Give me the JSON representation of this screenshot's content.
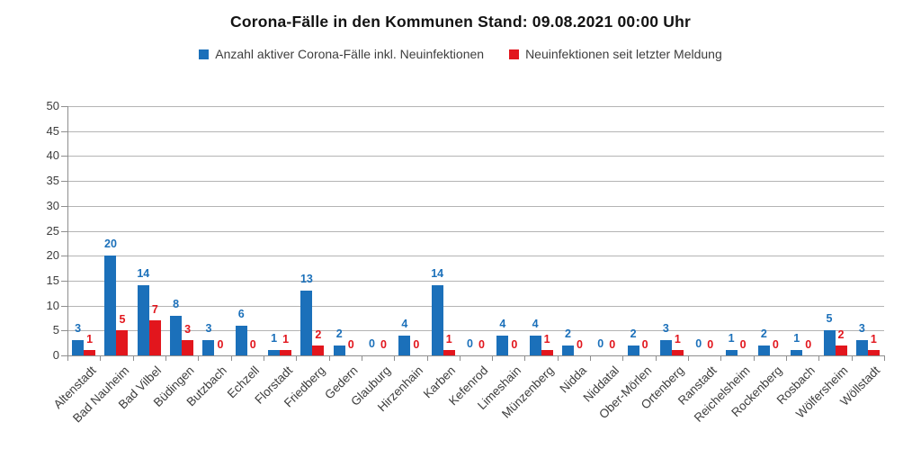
{
  "title": "Corona-Fälle in den Kommunen Stand: 09.08.2021 00:00 Uhr",
  "colors": {
    "active_cases_blue": "#1b70ba",
    "new_infections_red": "#e2161d",
    "grid": "#b4b4b4",
    "axis": "#8e8e8e",
    "text": "#3d3d3d",
    "title_text": "#131313"
  },
  "chart_data": {
    "type": "bar",
    "title": "Corona-Fälle in den Kommunen Stand: 09.08.2021 00:00 Uhr",
    "categories": [
      "Altenstadt",
      "Bad Nauheim",
      "Bad Vilbel",
      "Büdingen",
      "Butzbach",
      "Echzell",
      "Florstadt",
      "Friedberg",
      "Gedern",
      "Glauburg",
      "Hirzenhain",
      "Karben",
      "Kefenrod",
      "Limeshain",
      "Münzenberg",
      "Nidda",
      "Niddatal",
      "Ober-Mörlen",
      "Ortenberg",
      "Ranstadt",
      "Reichelsheim",
      "Rockenberg",
      "Rosbach",
      "Wölfersheim",
      "Wöllstadt"
    ],
    "series": [
      {
        "name": "Anzahl aktiver Corona-Fälle inkl. Neuinfektionen",
        "color": "#1b70ba",
        "values": [
          3,
          20,
          14,
          8,
          3,
          6,
          1,
          13,
          2,
          0,
          4,
          14,
          0,
          4,
          4,
          2,
          0,
          2,
          3,
          0,
          1,
          2,
          1,
          5,
          3
        ]
      },
      {
        "name": "Neuinfektionen seit letzter Meldung",
        "color": "#e2161d",
        "values": [
          1,
          5,
          7,
          3,
          0,
          0,
          1,
          2,
          0,
          0,
          0,
          1,
          0,
          0,
          1,
          0,
          0,
          0,
          1,
          0,
          0,
          0,
          0,
          2,
          1
        ]
      }
    ],
    "xlabel": "",
    "ylabel": "",
    "ylim": [
      0,
      50
    ],
    "yticks": [
      0,
      5,
      10,
      15,
      20,
      25,
      30,
      35,
      40,
      45,
      50
    ],
    "grid": true,
    "legend_position": "top",
    "bar_labels": true
  }
}
